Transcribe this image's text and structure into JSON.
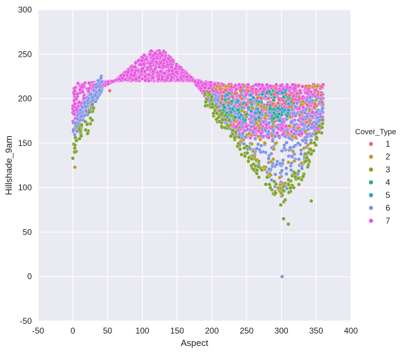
{
  "chart_data": {
    "type": "scatter",
    "title": "",
    "xlabel": "Aspect",
    "ylabel": "Hillshade_9am",
    "xlim": [
      -50,
      400
    ],
    "ylim": [
      -50,
      300
    ],
    "xticks": [
      -50,
      0,
      50,
      100,
      150,
      200,
      250,
      300,
      350,
      400
    ],
    "yticks": [
      -50,
      0,
      50,
      100,
      150,
      200,
      250,
      300
    ],
    "grid": true,
    "legend_title": "Cover_Type",
    "legend_position": "right",
    "series": [
      {
        "name": "1",
        "color": "#e8716b"
      },
      {
        "name": "2",
        "color": "#c39a2c"
      },
      {
        "name": "3",
        "color": "#7fa32e"
      },
      {
        "name": "4",
        "color": "#2ea88a"
      },
      {
        "name": "5",
        "color": "#2fa5c8"
      },
      {
        "name": "6",
        "color": "#7d95e6"
      },
      {
        "name": "7",
        "color": "#e756e0"
      }
    ],
    "description_points": [
      {
        "series": "2",
        "x": 3,
        "y": 123
      },
      {
        "series": "3",
        "x": 0,
        "y": 133
      },
      {
        "series": "3",
        "x": 303,
        "y": 65
      },
      {
        "series": "3",
        "x": 310,
        "y": 59
      },
      {
        "series": "3",
        "x": 343,
        "y": 85
      },
      {
        "series": "6",
        "x": 301,
        "y": 0
      },
      {
        "series": "1",
        "x": 53,
        "y": 209
      }
    ]
  }
}
